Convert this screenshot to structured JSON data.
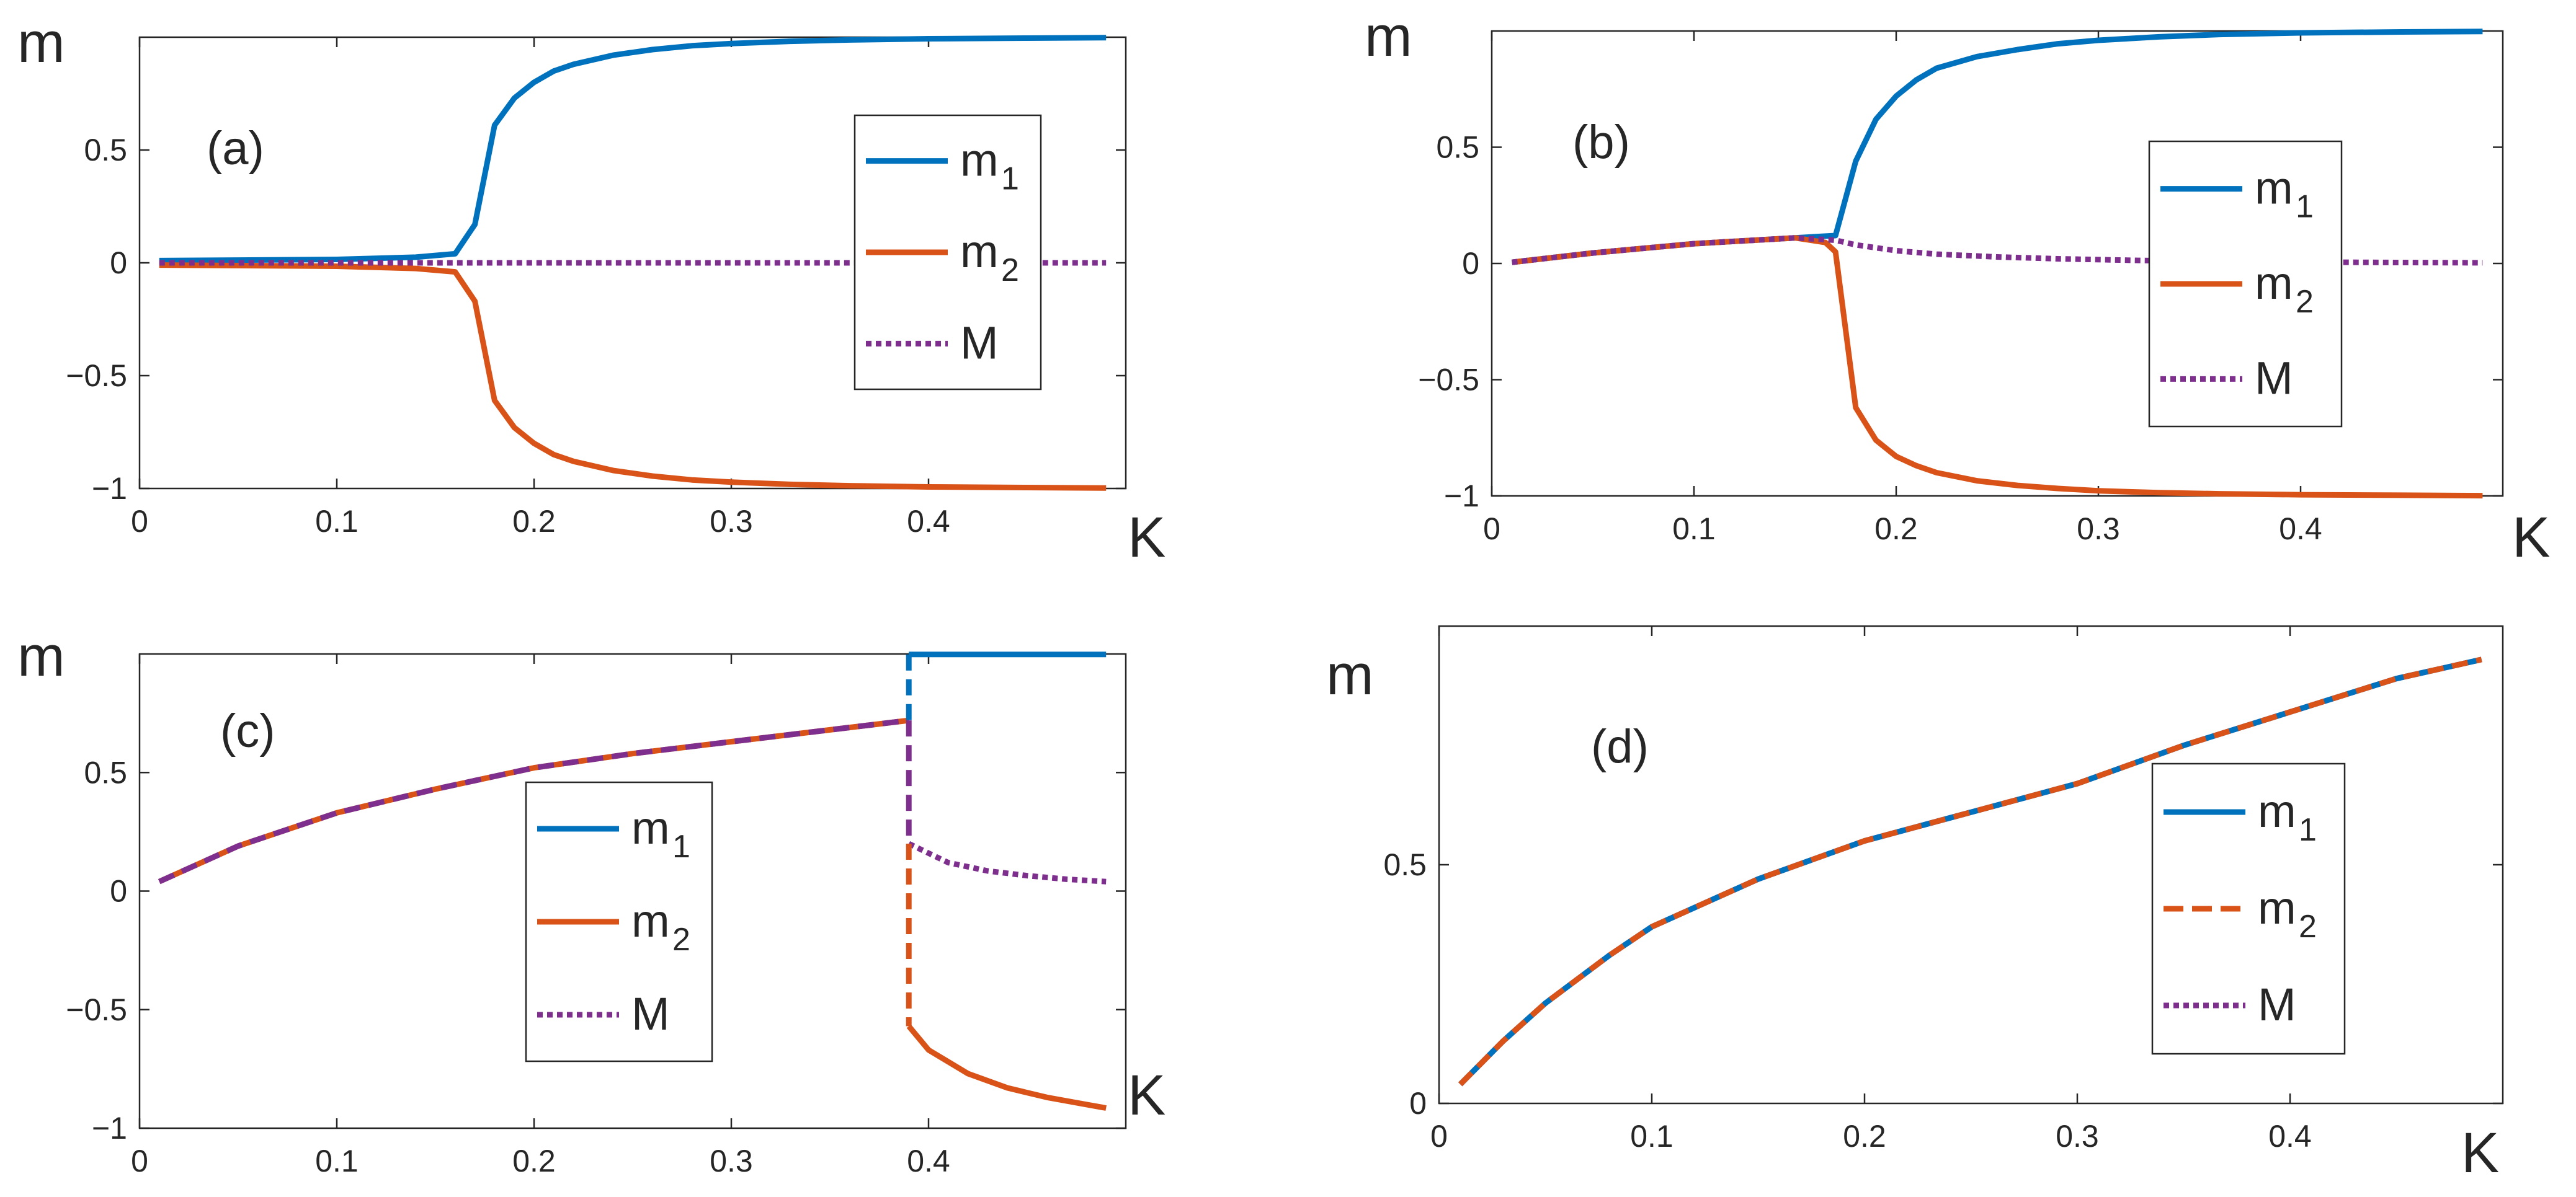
{
  "figure": {
    "colors": {
      "m1": "#0072BD",
      "m2": "#D95319",
      "M": "#7E2F8E",
      "axis": "#262626"
    },
    "icons": [
      "line-legend-sample-icon"
    ]
  },
  "chart_data": [
    {
      "id": "a",
      "type": "line",
      "panel_label": "(a)",
      "xlabel": "K",
      "ylabel": "m",
      "xlim": [
        0,
        0.5
      ],
      "ylim": [
        -1,
        1
      ],
      "xticks": [
        0,
        0.1,
        0.2,
        0.3,
        0.4
      ],
      "xtick_labels": [
        "0",
        "0.1",
        "0.2",
        "0.3",
        "0.4"
      ],
      "yticks": [
        0.5,
        0,
        -0.5,
        -1
      ],
      "ytick_labels": [
        "0.5",
        "0",
        "−0.5",
        "−1"
      ],
      "legend": {
        "position": "center-right",
        "entries": [
          {
            "key": "m1",
            "text": "m",
            "sub": "1"
          },
          {
            "key": "m2",
            "text": "m",
            "sub": "2"
          },
          {
            "key": "M",
            "text": "M",
            "sub": ""
          }
        ]
      },
      "series": [
        {
          "name": "m1",
          "color": "#0072BD",
          "style": "solid",
          "x": [
            0.01,
            0.05,
            0.1,
            0.14,
            0.16,
            0.17,
            0.18,
            0.19,
            0.2,
            0.21,
            0.22,
            0.24,
            0.26,
            0.28,
            0.3,
            0.33,
            0.36,
            0.4,
            0.45,
            0.49
          ],
          "y": [
            0.01,
            0.012,
            0.015,
            0.025,
            0.04,
            0.17,
            0.61,
            0.73,
            0.8,
            0.85,
            0.88,
            0.92,
            0.945,
            0.962,
            0.972,
            0.982,
            0.988,
            0.993,
            0.996,
            0.998
          ]
        },
        {
          "name": "m2",
          "color": "#D95319",
          "style": "solid",
          "x": [
            0.01,
            0.05,
            0.1,
            0.14,
            0.16,
            0.17,
            0.18,
            0.19,
            0.2,
            0.21,
            0.22,
            0.24,
            0.26,
            0.28,
            0.3,
            0.33,
            0.36,
            0.4,
            0.45,
            0.49
          ],
          "y": [
            -0.01,
            -0.012,
            -0.015,
            -0.025,
            -0.04,
            -0.17,
            -0.61,
            -0.73,
            -0.8,
            -0.85,
            -0.88,
            -0.92,
            -0.945,
            -0.962,
            -0.972,
            -0.982,
            -0.988,
            -0.993,
            -0.996,
            -0.998
          ]
        },
        {
          "name": "M",
          "color": "#7E2F8E",
          "style": "dotted",
          "x": [
            0.01,
            0.49
          ],
          "y": [
            0,
            0
          ]
        }
      ]
    },
    {
      "id": "b",
      "type": "line",
      "panel_label": "(b)",
      "xlabel": "K",
      "ylabel": "m",
      "xlim": [
        0,
        0.5
      ],
      "ylim": [
        -1,
        1
      ],
      "xticks": [
        0,
        0.1,
        0.2,
        0.3,
        0.4
      ],
      "xtick_labels": [
        "0",
        "0.1",
        "0.2",
        "0.3",
        "0.4"
      ],
      "yticks": [
        0.5,
        0,
        -0.5,
        -1
      ],
      "ytick_labels": [
        "0.5",
        "0",
        "−0.5",
        "−1"
      ],
      "legend": {
        "position": "center-right",
        "entries": [
          {
            "key": "m1",
            "text": "m",
            "sub": "1"
          },
          {
            "key": "m2",
            "text": "m",
            "sub": "2"
          },
          {
            "key": "M",
            "text": "M",
            "sub": ""
          }
        ]
      },
      "series": [
        {
          "name": "m1",
          "color": "#0072BD",
          "style": "solid",
          "x": [
            0.01,
            0.05,
            0.1,
            0.15,
            0.17,
            0.18,
            0.19,
            0.2,
            0.21,
            0.22,
            0.24,
            0.26,
            0.28,
            0.3,
            0.33,
            0.36,
            0.4,
            0.45,
            0.49
          ],
          "y": [
            0.005,
            0.045,
            0.085,
            0.11,
            0.12,
            0.44,
            0.62,
            0.72,
            0.79,
            0.84,
            0.89,
            0.92,
            0.945,
            0.96,
            0.975,
            0.985,
            0.992,
            0.996,
            0.998
          ]
        },
        {
          "name": "m2",
          "color": "#D95319",
          "style": "solid",
          "x": [
            0.01,
            0.05,
            0.1,
            0.15,
            0.165,
            0.17,
            0.18,
            0.19,
            0.2,
            0.21,
            0.22,
            0.24,
            0.26,
            0.28,
            0.3,
            0.33,
            0.36,
            0.4,
            0.45,
            0.49
          ],
          "y": [
            0.005,
            0.045,
            0.085,
            0.11,
            0.09,
            0.05,
            -0.62,
            -0.76,
            -0.83,
            -0.87,
            -0.9,
            -0.935,
            -0.955,
            -0.968,
            -0.978,
            -0.986,
            -0.991,
            -0.995,
            -0.997,
            -0.999
          ]
        },
        {
          "name": "M",
          "color": "#7E2F8E",
          "style": "dotted",
          "x": [
            0.01,
            0.05,
            0.1,
            0.15,
            0.17,
            0.18,
            0.2,
            0.22,
            0.25,
            0.28,
            0.32,
            0.36,
            0.4,
            0.45,
            0.49
          ],
          "y": [
            0.005,
            0.045,
            0.085,
            0.11,
            0.1,
            0.08,
            0.055,
            0.04,
            0.028,
            0.02,
            0.013,
            0.009,
            0.006,
            0.004,
            0.003
          ]
        }
      ]
    },
    {
      "id": "c",
      "type": "line",
      "panel_label": "(c)",
      "xlabel": "K",
      "ylabel": "m",
      "xlim": [
        0,
        0.5
      ],
      "ylim": [
        -1,
        1
      ],
      "xticks": [
        0,
        0.1,
        0.2,
        0.3,
        0.4
      ],
      "xtick_labels": [
        "0",
        "0.1",
        "0.2",
        "0.3",
        "0.4"
      ],
      "yticks": [
        0.5,
        0,
        -0.5,
        -1
      ],
      "ytick_labels": [
        "0.5",
        "0",
        "−0.5",
        "−1"
      ],
      "legend": {
        "position": "center",
        "entries": [
          {
            "key": "m1",
            "text": "m",
            "sub": "1"
          },
          {
            "key": "m2",
            "text": "m",
            "sub": "2"
          },
          {
            "key": "M",
            "text": "M",
            "sub": ""
          }
        ]
      },
      "series": [
        {
          "name": "m1",
          "color": "#0072BD",
          "style": "solid",
          "segments": [
            {
              "x": [
                0.39,
                0.49
              ],
              "y": [
                0.998,
                0.998
              ]
            }
          ]
        },
        {
          "name": "m2",
          "color": "#D95319",
          "style": "solid",
          "segments": [
            {
              "x": [
                0.39,
                0.4,
                0.42,
                0.44,
                0.46,
                0.48,
                0.49
              ],
              "y": [
                -0.57,
                -0.67,
                -0.77,
                -0.83,
                -0.87,
                -0.9,
                -0.915
              ]
            }
          ]
        },
        {
          "name": "m1=m2",
          "color": "#D95319",
          "style": "solid",
          "segments": [
            {
              "x": [
                0.01,
                0.05,
                0.1,
                0.15,
                0.2,
                0.25,
                0.3,
                0.35,
                0.39
              ],
              "y": [
                0.04,
                0.19,
                0.33,
                0.43,
                0.52,
                0.58,
                0.63,
                0.68,
                0.72
              ]
            }
          ]
        },
        {
          "name": "M",
          "color": "#7E2F8E",
          "style": "dashed",
          "segments": [
            {
              "x": [
                0.01,
                0.05,
                0.1,
                0.15,
                0.2,
                0.25,
                0.3,
                0.35,
                0.39
              ],
              "y": [
                0.04,
                0.19,
                0.33,
                0.43,
                0.52,
                0.58,
                0.63,
                0.68,
                0.72
              ]
            },
            {
              "x": [
                0.39,
                0.39
              ],
              "y": [
                0.72,
                0.2
              ]
            }
          ]
        },
        {
          "name": "M-after",
          "color": "#7E2F8E",
          "style": "dotted",
          "segments": [
            {
              "x": [
                0.39,
                0.41,
                0.43,
                0.45,
                0.47,
                0.49
              ],
              "y": [
                0.2,
                0.12,
                0.085,
                0.065,
                0.05,
                0.04
              ]
            }
          ]
        },
        {
          "name": "m1-jump",
          "color": "#0072BD",
          "style": "dashed",
          "segments": [
            {
              "x": [
                0.39,
                0.39
              ],
              "y": [
                0.998,
                0.72
              ]
            }
          ]
        },
        {
          "name": "m2-jump",
          "color": "#D95319",
          "style": "dashed",
          "segments": [
            {
              "x": [
                0.39,
                0.39
              ],
              "y": [
                0.2,
                -0.57
              ]
            }
          ]
        }
      ]
    },
    {
      "id": "d",
      "type": "line",
      "panel_label": "(d)",
      "xlabel": "K",
      "ylabel": "m",
      "xlim": [
        0,
        0.5
      ],
      "ylim": [
        0,
        1
      ],
      "xticks": [
        0,
        0.1,
        0.2,
        0.3,
        0.4
      ],
      "xtick_labels": [
        "0",
        "0.1",
        "0.2",
        "0.3",
        "0.4"
      ],
      "yticks": [
        0.5,
        0
      ],
      "ytick_labels": [
        "0.5",
        "0"
      ],
      "legend": {
        "position": "center-right",
        "entries": [
          {
            "key": "m1",
            "text": "m",
            "sub": "1"
          },
          {
            "key": "m2d",
            "text": "m",
            "sub": "2"
          },
          {
            "key": "M",
            "text": "M",
            "sub": ""
          }
        ]
      },
      "series": [
        {
          "name": "M",
          "color": "#7E2F8E",
          "style": "solid",
          "x": [
            0.01,
            0.03,
            0.05,
            0.08,
            0.1,
            0.15,
            0.2,
            0.25,
            0.3,
            0.35,
            0.4,
            0.45,
            0.49
          ],
          "y": [
            0.04,
            0.13,
            0.21,
            0.31,
            0.37,
            0.47,
            0.55,
            0.61,
            0.67,
            0.75,
            0.82,
            0.89,
            0.93
          ]
        },
        {
          "name": "m1",
          "color": "#0072BD",
          "style": "solid",
          "x": [
            0.01,
            0.03,
            0.05,
            0.08,
            0.1,
            0.15,
            0.2,
            0.25,
            0.3,
            0.35,
            0.4,
            0.45,
            0.49
          ],
          "y": [
            0.04,
            0.13,
            0.21,
            0.31,
            0.37,
            0.47,
            0.55,
            0.61,
            0.67,
            0.75,
            0.82,
            0.89,
            0.93
          ]
        },
        {
          "name": "m2",
          "color": "#D95319",
          "style": "dashed",
          "x": [
            0.01,
            0.03,
            0.05,
            0.08,
            0.1,
            0.15,
            0.2,
            0.25,
            0.3,
            0.35,
            0.4,
            0.45,
            0.49
          ],
          "y": [
            0.04,
            0.13,
            0.21,
            0.31,
            0.37,
            0.47,
            0.55,
            0.61,
            0.67,
            0.75,
            0.82,
            0.89,
            0.93
          ]
        }
      ]
    }
  ]
}
